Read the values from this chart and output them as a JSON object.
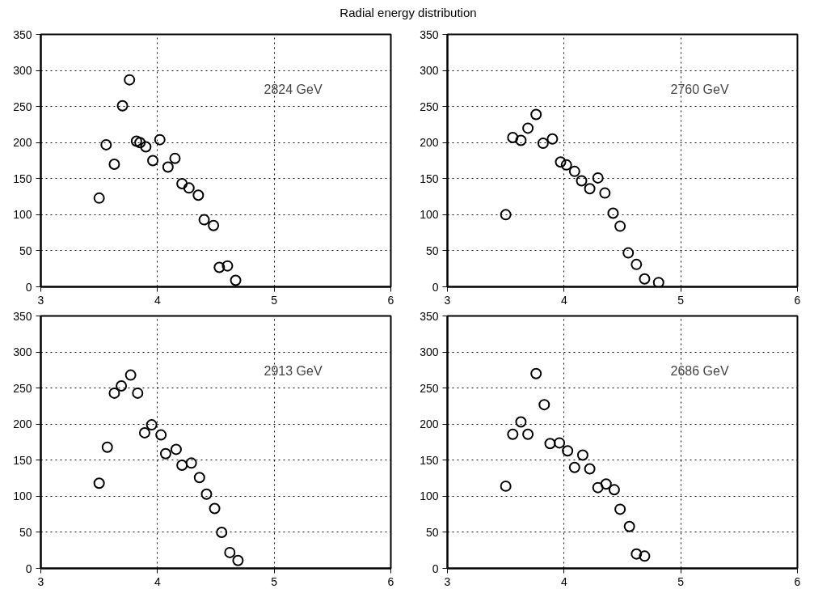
{
  "chart_data": [
    {
      "type": "scatter",
      "title": "Radial energy distribution",
      "annotations": [
        "2824 GeV"
      ],
      "marker": "circle",
      "grid": true,
      "xlim": [
        3,
        6
      ],
      "ylim": [
        0,
        350
      ],
      "xticks": [
        3,
        4,
        5,
        6
      ],
      "yticks": [
        0,
        50,
        100,
        150,
        200,
        250,
        300,
        350
      ],
      "series": [
        {
          "color": "#000000",
          "x": [
            3.5,
            3.56,
            3.63,
            3.7,
            3.76,
            3.82,
            3.85,
            3.9,
            3.96,
            4.02,
            4.09,
            4.15,
            4.21,
            4.27,
            4.35,
            4.4,
            4.48,
            4.53,
            4.6,
            4.67
          ],
          "values": [
            123,
            197,
            170,
            251,
            287,
            202,
            200,
            194,
            175,
            204,
            166,
            178,
            143,
            137,
            127,
            93,
            85,
            27,
            29,
            9
          ]
        }
      ]
    },
    {
      "type": "scatter",
      "annotations": [
        "2760 GeV"
      ],
      "marker": "circle",
      "grid": true,
      "xlim": [
        3,
        6
      ],
      "ylim": [
        0,
        350
      ],
      "xticks": [
        3,
        4,
        5,
        6
      ],
      "yticks": [
        0,
        50,
        100,
        150,
        200,
        250,
        300,
        350
      ],
      "series": [
        {
          "color": "#000000",
          "x": [
            3.5,
            3.56,
            3.63,
            3.69,
            3.76,
            3.82,
            3.9,
            3.97,
            4.02,
            4.09,
            4.15,
            4.22,
            4.29,
            4.35,
            4.42,
            4.48,
            4.55,
            4.62,
            4.69,
            4.81
          ],
          "values": [
            100,
            207,
            203,
            220,
            239,
            199,
            205,
            173,
            169,
            160,
            147,
            136,
            151,
            130,
            102,
            84,
            47,
            31,
            11,
            6
          ]
        }
      ]
    },
    {
      "type": "scatter",
      "annotations": [
        "2913 GeV"
      ],
      "marker": "circle",
      "grid": true,
      "xlim": [
        3,
        6
      ],
      "ylim": [
        0,
        350
      ],
      "xticks": [
        3,
        4,
        5,
        6
      ],
      "yticks": [
        0,
        50,
        100,
        150,
        200,
        250,
        300,
        350
      ],
      "series": [
        {
          "color": "#000000",
          "x": [
            3.5,
            3.57,
            3.63,
            3.69,
            3.77,
            3.83,
            3.89,
            3.95,
            4.03,
            4.07,
            4.16,
            4.21,
            4.29,
            4.36,
            4.42,
            4.49,
            4.55,
            4.62,
            4.69
          ],
          "values": [
            118,
            168,
            243,
            253,
            268,
            243,
            188,
            199,
            185,
            159,
            165,
            143,
            146,
            126,
            103,
            83,
            50,
            22,
            11
          ]
        }
      ]
    },
    {
      "type": "scatter",
      "annotations": [
        "2686 GeV"
      ],
      "marker": "circle",
      "grid": true,
      "xlim": [
        3,
        6
      ],
      "ylim": [
        0,
        350
      ],
      "xticks": [
        3,
        4,
        5,
        6
      ],
      "yticks": [
        0,
        50,
        100,
        150,
        200,
        250,
        300,
        350
      ],
      "series": [
        {
          "color": "#000000",
          "x": [
            3.5,
            3.56,
            3.63,
            3.69,
            3.76,
            3.83,
            3.88,
            3.96,
            4.03,
            4.09,
            4.16,
            4.22,
            4.29,
            4.36,
            4.43,
            4.48,
            4.56,
            4.62,
            4.69
          ],
          "values": [
            114,
            186,
            203,
            186,
            270,
            227,
            173,
            174,
            163,
            140,
            157,
            138,
            112,
            117,
            109,
            82,
            58,
            20,
            17
          ]
        }
      ]
    }
  ]
}
